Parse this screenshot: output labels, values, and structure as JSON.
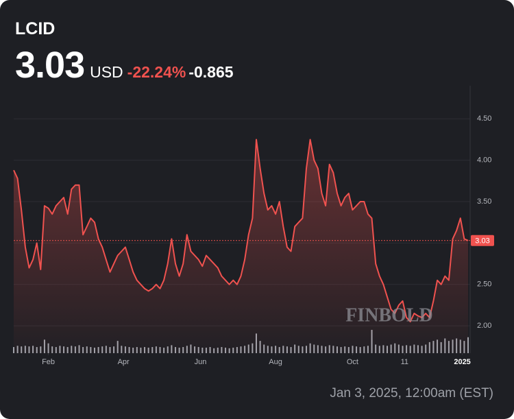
{
  "chart_data": {
    "type": "line",
    "symbol": "LCID",
    "price": 3.03,
    "currency": "USD",
    "change_percent": "-22.24%",
    "change": "-0.865",
    "watermark": "FINBOLD",
    "timestamp": "Jan 3, 2025, 12:00am (EST)",
    "color": "#f0524f",
    "volume_color": "#b9bcc4",
    "grid": true,
    "values": [
      3.88,
      3.78,
      3.4,
      2.95,
      2.7,
      2.8,
      3.0,
      2.68,
      3.45,
      3.42,
      3.35,
      3.45,
      3.5,
      3.55,
      3.35,
      3.65,
      3.7,
      3.7,
      3.1,
      3.2,
      3.3,
      3.25,
      3.05,
      2.95,
      2.8,
      2.65,
      2.75,
      2.85,
      2.9,
      2.95,
      2.8,
      2.65,
      2.55,
      2.5,
      2.45,
      2.42,
      2.45,
      2.5,
      2.45,
      2.55,
      2.75,
      3.05,
      2.75,
      2.6,
      2.75,
      3.1,
      2.9,
      2.85,
      2.8,
      2.72,
      2.85,
      2.8,
      2.75,
      2.7,
      2.6,
      2.55,
      2.5,
      2.55,
      2.5,
      2.6,
      2.8,
      3.1,
      3.3,
      4.25,
      3.9,
      3.6,
      3.4,
      3.45,
      3.35,
      3.5,
      3.2,
      2.95,
      2.9,
      3.2,
      3.25,
      3.3,
      3.9,
      4.25,
      4.0,
      3.9,
      3.6,
      3.45,
      3.95,
      3.85,
      3.6,
      3.45,
      3.55,
      3.6,
      3.4,
      3.45,
      3.5,
      3.5,
      3.35,
      3.3,
      2.75,
      2.6,
      2.5,
      2.35,
      2.2,
      2.15,
      2.25,
      2.3,
      2.1,
      2.05,
      2.15,
      2.12,
      2.1,
      2.15,
      2.1,
      2.3,
      2.55,
      2.5,
      2.6,
      2.55,
      3.05,
      3.15,
      3.3,
      3.05,
      3.03
    ],
    "volume": [
      10,
      12,
      11,
      12,
      11,
      12,
      10,
      11,
      22,
      16,
      11,
      10,
      12,
      11,
      10,
      12,
      11,
      13,
      10,
      11,
      10,
      9,
      10,
      11,
      12,
      10,
      11,
      20,
      12,
      11,
      10,
      9,
      10,
      9,
      10,
      9,
      10,
      11,
      10,
      9,
      11,
      13,
      10,
      9,
      10,
      12,
      14,
      11,
      10,
      9,
      9,
      10,
      8,
      9,
      10,
      9,
      8,
      9,
      10,
      11,
      12,
      14,
      16,
      32,
      20,
      14,
      12,
      11,
      12,
      10,
      12,
      11,
      10,
      14,
      12,
      11,
      12,
      16,
      14,
      13,
      12,
      11,
      13,
      12,
      11,
      10,
      11,
      10,
      12,
      11,
      10,
      11,
      12,
      38,
      14,
      12,
      13,
      12,
      14,
      16,
      14,
      12,
      13,
      12,
      14,
      13,
      12,
      14,
      18,
      20,
      22,
      18,
      24,
      20,
      22,
      24,
      22,
      20,
      26
    ],
    "ylim": [
      1.67,
      4.9
    ],
    "yticks": [
      {
        "value": 2,
        "label": "2.00"
      },
      {
        "value": 2.5,
        "label": "2.50"
      },
      {
        "value": 3,
        "label": "3.00"
      },
      {
        "value": 3.5,
        "label": "3.50"
      },
      {
        "value": 4,
        "label": "4.00"
      },
      {
        "value": 4.5,
        "label": "4.50"
      }
    ],
    "xticks": [
      {
        "value": 9,
        "label": "Feb"
      },
      {
        "value": 28.5,
        "label": "Apr"
      },
      {
        "value": 48.5,
        "label": "Jun"
      },
      {
        "value": 68,
        "label": "Aug"
      },
      {
        "value": 88,
        "label": "Oct"
      },
      {
        "value": 101.5,
        "label": "11"
      },
      {
        "value": 116.5,
        "label": "2025"
      }
    ]
  }
}
